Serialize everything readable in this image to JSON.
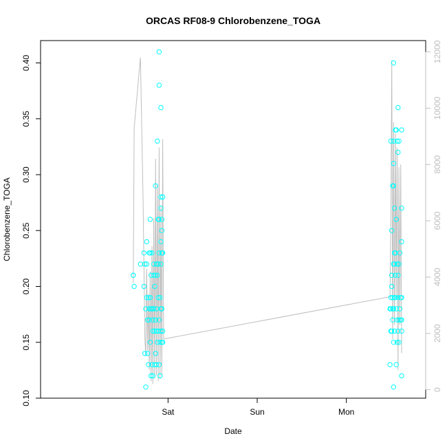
{
  "chart_data": {
    "type": "scatter",
    "title": "ORCAS RF08-9 Chlorobenzene_TOGA",
    "xlabel": "Date",
    "ylabel": "Chlorobenzene_TOGA",
    "xlim": [
      -1.43,
      2.89
    ],
    "ylim": [
      0.1,
      0.42
    ],
    "x_ticks": [
      {
        "value": 0,
        "label": "Sat"
      },
      {
        "value": 1,
        "label": "Sun"
      },
      {
        "value": 2,
        "label": "Mon"
      }
    ],
    "y_ticks": [
      {
        "value": 0.1,
        "label": "0.10"
      },
      {
        "value": 0.15,
        "label": "0.15"
      },
      {
        "value": 0.2,
        "label": "0.20"
      },
      {
        "value": 0.25,
        "label": "0.25"
      },
      {
        "value": 0.3,
        "label": "0.30"
      },
      {
        "value": 0.35,
        "label": "0.35"
      },
      {
        "value": 0.4,
        "label": "0.40"
      }
    ],
    "y2lim": [
      -300,
      12400
    ],
    "y2_ticks": [
      {
        "value": 0,
        "label": "0"
      },
      {
        "value": 2000,
        "label": "2000"
      },
      {
        "value": 4000,
        "label": "4000"
      },
      {
        "value": 6000,
        "label": "6000"
      },
      {
        "value": 8000,
        "label": "8000"
      },
      {
        "value": 10000,
        "label": "10000"
      },
      {
        "value": 12000,
        "label": "12000"
      }
    ],
    "series": [
      {
        "color": "#00ffff",
        "marker": "open-circle",
        "axis": "left",
        "points": [
          [
            -0.39,
            0.21
          ],
          [
            -0.39,
            0.21
          ],
          [
            -0.38,
            0.2
          ],
          [
            -0.31,
            0.22
          ],
          [
            -0.27,
            0.23
          ],
          [
            -0.27,
            0.2
          ],
          [
            -0.26,
            0.22
          ],
          [
            -0.26,
            0.14
          ],
          [
            -0.25,
            0.11
          ],
          [
            -0.25,
            0.18
          ],
          [
            -0.24,
            0.24
          ],
          [
            -0.24,
            0.22
          ],
          [
            -0.24,
            0.19
          ],
          [
            -0.23,
            0.17
          ],
          [
            -0.23,
            0.14
          ],
          [
            -0.22,
            0.13
          ],
          [
            -0.22,
            0.19
          ],
          [
            -0.21,
            0.23
          ],
          [
            -0.21,
            0.18
          ],
          [
            -0.21,
            0.17
          ],
          [
            -0.2,
            0.26
          ],
          [
            -0.2,
            0.23
          ],
          [
            -0.2,
            0.19
          ],
          [
            -0.2,
            0.15
          ],
          [
            -0.19,
            0.18
          ],
          [
            -0.19,
            0.12
          ],
          [
            -0.19,
            0.21
          ],
          [
            -0.18,
            0.23
          ],
          [
            -0.18,
            0.18
          ],
          [
            -0.18,
            0.13
          ],
          [
            -0.17,
            0.17
          ],
          [
            -0.17,
            0.12
          ],
          [
            -0.17,
            0.16
          ],
          [
            -0.16,
            0.21
          ],
          [
            -0.16,
            0.22
          ],
          [
            -0.16,
            0.18
          ],
          [
            -0.15,
            0.2
          ],
          [
            -0.15,
            0.16
          ],
          [
            -0.15,
            0.13
          ],
          [
            -0.14,
            0.29
          ],
          [
            -0.14,
            0.21
          ],
          [
            -0.14,
            0.14
          ],
          [
            -0.14,
            0.17
          ],
          [
            -0.13,
            0.22
          ],
          [
            -0.13,
            0.16
          ],
          [
            -0.13,
            0.13
          ],
          [
            -0.13,
            0.18
          ],
          [
            -0.12,
            0.33
          ],
          [
            -0.12,
            0.21
          ],
          [
            -0.12,
            0.15
          ],
          [
            -0.11,
            0.22
          ],
          [
            -0.11,
            0.19
          ],
          [
            -0.11,
            0.26
          ],
          [
            -0.11,
            0.16
          ],
          [
            -0.1,
            0.41
          ],
          [
            -0.1,
            0.38
          ],
          [
            -0.1,
            0.23
          ],
          [
            -0.1,
            0.17
          ],
          [
            -0.1,
            0.13
          ],
          [
            -0.1,
            0.26
          ],
          [
            -0.09,
            0.12
          ],
          [
            -0.09,
            0.19
          ],
          [
            -0.09,
            0.15
          ],
          [
            -0.08,
            0.36
          ],
          [
            -0.08,
            0.24
          ],
          [
            -0.08,
            0.22
          ],
          [
            -0.08,
            0.18
          ],
          [
            -0.08,
            0.16
          ],
          [
            -0.08,
            0.27
          ],
          [
            -0.08,
            0.28
          ],
          [
            -0.07,
            0.26
          ],
          [
            -0.07,
            0.23
          ],
          [
            -0.07,
            0.18
          ],
          [
            -0.07,
            0.15
          ],
          [
            -0.07,
            0.25
          ],
          [
            -0.06,
            0.23
          ],
          [
            -0.06,
            0.16
          ],
          [
            -0.06,
            0.28
          ],
          [
            -0.06,
            0.15
          ],
          [
            2.49,
            0.18
          ],
          [
            2.49,
            0.13
          ],
          [
            2.5,
            0.33
          ],
          [
            2.5,
            0.18
          ],
          [
            2.5,
            0.19
          ],
          [
            2.5,
            0.16
          ],
          [
            2.51,
            0.2
          ],
          [
            2.51,
            0.16
          ],
          [
            2.51,
            0.25
          ],
          [
            2.51,
            0.21
          ],
          [
            2.52,
            0.29
          ],
          [
            2.52,
            0.19
          ],
          [
            2.52,
            0.18
          ],
          [
            2.52,
            0.17
          ],
          [
            2.53,
            0.4
          ],
          [
            2.53,
            0.33
          ],
          [
            2.53,
            0.31
          ],
          [
            2.53,
            0.29
          ],
          [
            2.53,
            0.22
          ],
          [
            2.53,
            0.18
          ],
          [
            2.53,
            0.15
          ],
          [
            2.53,
            0.11
          ],
          [
            2.54,
            0.27
          ],
          [
            2.54,
            0.23
          ],
          [
            2.54,
            0.22
          ],
          [
            2.54,
            0.19
          ],
          [
            2.54,
            0.16
          ],
          [
            2.55,
            0.34
          ],
          [
            2.55,
            0.23
          ],
          [
            2.55,
            0.21
          ],
          [
            2.55,
            0.19
          ],
          [
            2.56,
            0.34
          ],
          [
            2.56,
            0.26
          ],
          [
            2.56,
            0.18
          ],
          [
            2.56,
            0.13
          ],
          [
            2.57,
            0.33
          ],
          [
            2.57,
            0.22
          ],
          [
            2.57,
            0.17
          ],
          [
            2.57,
            0.15
          ],
          [
            2.58,
            0.36
          ],
          [
            2.58,
            0.32
          ],
          [
            2.58,
            0.21
          ],
          [
            2.58,
            0.19
          ],
          [
            2.58,
            0.16
          ],
          [
            2.59,
            0.33
          ],
          [
            2.59,
            0.22
          ],
          [
            2.59,
            0.17
          ],
          [
            2.59,
            0.15
          ],
          [
            2.6,
            0.23
          ],
          [
            2.6,
            0.18
          ],
          [
            2.61,
            0.19
          ],
          [
            2.61,
            0.17
          ],
          [
            2.62,
            0.34
          ],
          [
            2.62,
            0.27
          ],
          [
            2.62,
            0.24
          ],
          [
            2.62,
            0.19
          ],
          [
            2.62,
            0.17
          ],
          [
            2.62,
            0.16
          ],
          [
            2.62,
            0.12
          ]
        ]
      },
      {
        "color": "#bebebe",
        "marker": "line",
        "axis": "right",
        "points": [
          [
            -0.39,
            3800
          ],
          [
            -0.38,
            9300
          ],
          [
            -0.31,
            11800
          ],
          [
            -0.28,
            6700
          ],
          [
            -0.26,
            1800
          ],
          [
            -0.25,
            1200
          ],
          [
            -0.24,
            4300
          ],
          [
            -0.23,
            1400
          ],
          [
            -0.22,
            3400
          ],
          [
            -0.21,
            700
          ],
          [
            -0.2,
            4200
          ],
          [
            -0.19,
            300
          ],
          [
            -0.18,
            5100
          ],
          [
            -0.17,
            200
          ],
          [
            -0.16,
            6100
          ],
          [
            -0.15,
            400
          ],
          [
            -0.14,
            8200
          ],
          [
            -0.13,
            500
          ],
          [
            -0.12,
            7300
          ],
          [
            -0.11,
            300
          ],
          [
            -0.1,
            8600
          ],
          [
            -0.09,
            400
          ],
          [
            -0.08,
            6500
          ],
          [
            -0.07,
            500
          ],
          [
            -0.06,
            8900
          ],
          [
            -0.05,
            1800
          ],
          [
            2.49,
            3300
          ],
          [
            2.5,
            6000
          ],
          [
            2.51,
            11700
          ],
          [
            2.52,
            1800
          ],
          [
            2.53,
            9500
          ],
          [
            2.54,
            2300
          ],
          [
            2.55,
            9100
          ],
          [
            2.56,
            3300
          ],
          [
            2.57,
            8600
          ],
          [
            2.58,
            700
          ],
          [
            2.59,
            7900
          ],
          [
            2.6,
            2300
          ],
          [
            2.61,
            8000
          ],
          [
            2.62,
            1300
          ]
        ]
      }
    ]
  }
}
